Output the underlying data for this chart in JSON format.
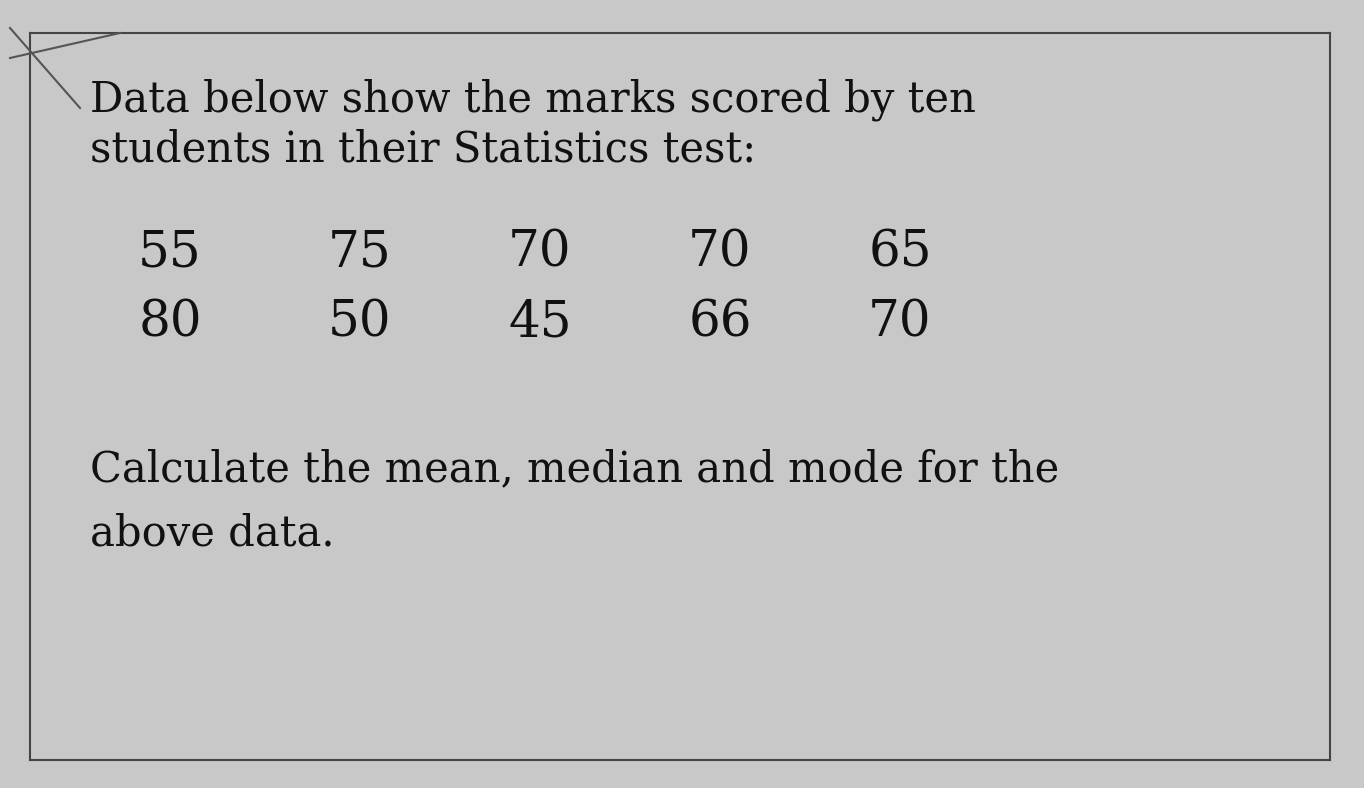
{
  "background_color": "#c8c8c8",
  "box_color": "#d8d8d8",
  "text_color": "#111111",
  "line1": "Data below show the marks scored by ten",
  "line2": "students in their Statistics test:",
  "row1": [
    "55",
    "75",
    "70",
    "70",
    "65"
  ],
  "row2": [
    "80",
    "50",
    "45",
    "66",
    "70"
  ],
  "footer_line1": "Calculate the mean, median and mode for the",
  "footer_line2": "above data.",
  "header_fontsize": 30,
  "data_fontsize": 36,
  "footer_fontsize": 30,
  "border_color": "#444444",
  "border_linewidth": 1.5
}
